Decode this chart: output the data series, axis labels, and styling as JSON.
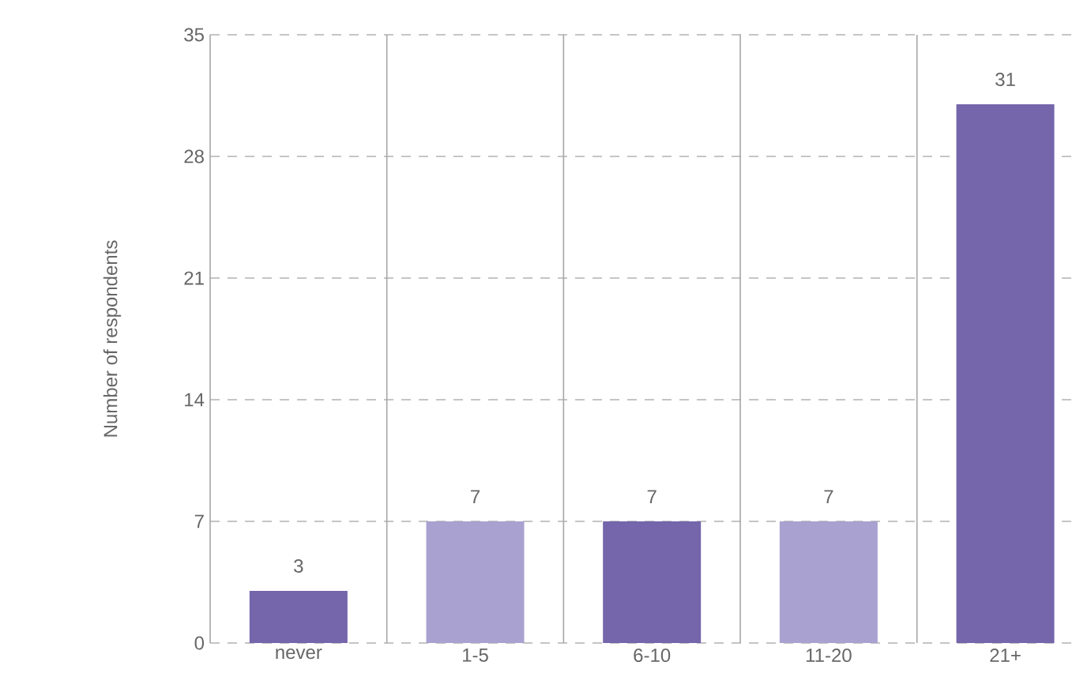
{
  "chart_data": {
    "type": "bar",
    "ylabel": "Number of respondents",
    "categories": [
      "never",
      "1-5",
      "6-10",
      "11-20",
      "21+"
    ],
    "values": [
      3,
      7,
      7,
      7,
      31
    ],
    "colors": [
      "#7565ab",
      "#a9a1cf",
      "#7565ab",
      "#a9a1cf",
      "#7565ab"
    ],
    "ylim": [
      0,
      35
    ],
    "yticks": [
      0,
      7,
      14,
      21,
      28,
      35
    ],
    "grid": true,
    "data_labels": true
  }
}
